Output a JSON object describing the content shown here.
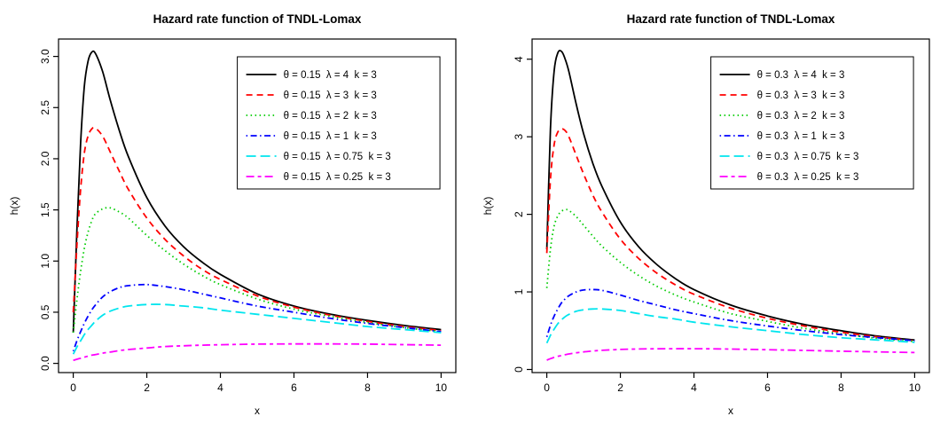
{
  "figure": {
    "background": "#ffffff"
  },
  "chart_data": [
    {
      "type": "line",
      "title": "Hazard rate function of TNDL-Lomax",
      "xlabel": "x",
      "ylabel": "h(x)",
      "xlim": [
        0,
        10
      ],
      "ylim": [
        0,
        3
      ],
      "xticks": [
        0,
        2,
        4,
        6,
        8,
        10
      ],
      "yticks": [
        0,
        0.5,
        1,
        1.5,
        2,
        2.5,
        3
      ],
      "ytick_labels": [
        "0.0",
        "0.5",
        "1.0",
        "1.5",
        "2.0",
        "2.5",
        "3.0"
      ],
      "grid": false,
      "legend_position": "top-right-inside",
      "draw_xlim": [
        -0.4,
        10.4
      ],
      "draw_ylim": [
        -0.09,
        3.17
      ],
      "x": [
        0,
        0.1,
        0.2,
        0.3,
        0.4,
        0.5,
        0.6,
        0.8,
        1,
        1.25,
        1.5,
        2,
        2.5,
        3,
        3.5,
        4,
        5,
        6,
        7,
        8,
        9,
        10
      ],
      "series": [
        {
          "name": "θ = 0.15  λ = 4  k = 3",
          "color": "#000000",
          "line_style": "solid",
          "values": [
            0.3,
            1.3,
            2.15,
            2.7,
            2.95,
            3.04,
            3.03,
            2.85,
            2.58,
            2.28,
            2.02,
            1.62,
            1.34,
            1.14,
            0.99,
            0.87,
            0.68,
            0.56,
            0.48,
            0.42,
            0.37,
            0.33
          ]
        },
        {
          "name": "θ = 0.15  λ = 3  k = 3",
          "color": "#ff0000",
          "line_style": "dashed",
          "values": [
            0.5,
            1.15,
            1.7,
            2.05,
            2.22,
            2.29,
            2.3,
            2.22,
            2.07,
            1.88,
            1.7,
            1.42,
            1.21,
            1.05,
            0.92,
            0.82,
            0.66,
            0.55,
            0.47,
            0.41,
            0.36,
            0.32
          ]
        },
        {
          "name": "θ = 0.15  λ = 2  k = 3",
          "color": "#00cc00",
          "line_style": "dotted",
          "values": [
            0.3,
            0.62,
            0.9,
            1.12,
            1.28,
            1.39,
            1.46,
            1.51,
            1.52,
            1.48,
            1.42,
            1.25,
            1.1,
            0.97,
            0.86,
            0.77,
            0.63,
            0.53,
            0.46,
            0.4,
            0.35,
            0.31
          ]
        },
        {
          "name": "θ = 0.15  λ = 1  k = 3",
          "color": "#0000ff",
          "line_style": "dotdash",
          "values": [
            0.12,
            0.22,
            0.31,
            0.39,
            0.46,
            0.52,
            0.57,
            0.65,
            0.7,
            0.74,
            0.76,
            0.77,
            0.75,
            0.72,
            0.68,
            0.64,
            0.56,
            0.5,
            0.44,
            0.39,
            0.35,
            0.31
          ]
        },
        {
          "name": "θ = 0.15  λ = 0.75  k = 3",
          "color": "#00e5ee",
          "line_style": "longdash",
          "values": [
            0.09,
            0.16,
            0.22,
            0.28,
            0.33,
            0.37,
            0.41,
            0.47,
            0.51,
            0.54,
            0.56,
            0.575,
            0.575,
            0.56,
            0.545,
            0.52,
            0.48,
            0.44,
            0.4,
            0.36,
            0.33,
            0.3
          ]
        },
        {
          "name": "θ = 0.15  λ = 0.25  k = 3",
          "color": "#ff00ff",
          "line_style": "twodash",
          "values": [
            0.03,
            0.04,
            0.05,
            0.06,
            0.07,
            0.08,
            0.085,
            0.1,
            0.11,
            0.125,
            0.135,
            0.15,
            0.165,
            0.172,
            0.178,
            0.182,
            0.188,
            0.19,
            0.19,
            0.188,
            0.183,
            0.178
          ]
        }
      ]
    },
    {
      "type": "line",
      "title": "Hazard rate function of TNDL-Lomax",
      "xlabel": "x",
      "ylabel": "h(x)",
      "xlim": [
        0,
        10
      ],
      "ylim": [
        0,
        4
      ],
      "xticks": [
        0,
        2,
        4,
        6,
        8,
        10
      ],
      "yticks": [
        0,
        1,
        2,
        3,
        4
      ],
      "ytick_labels": [
        "0",
        "1",
        "2",
        "3",
        "4"
      ],
      "grid": false,
      "legend_position": "top-right-inside",
      "draw_xlim": [
        -0.4,
        10.4
      ],
      "draw_ylim": [
        -0.04,
        4.26
      ],
      "x": [
        0,
        0.1,
        0.2,
        0.3,
        0.4,
        0.5,
        0.6,
        0.8,
        1,
        1.25,
        1.5,
        2,
        2.5,
        3,
        3.5,
        4,
        5,
        6,
        7,
        8,
        9,
        10
      ],
      "series": [
        {
          "name": "θ = 0.3  λ = 4  k = 3",
          "color": "#000000",
          "line_style": "solid",
          "values": [
            1.55,
            3.1,
            3.85,
            4.08,
            4.1,
            4.0,
            3.84,
            3.42,
            3.04,
            2.66,
            2.36,
            1.9,
            1.58,
            1.35,
            1.17,
            1.03,
            0.83,
            0.69,
            0.58,
            0.5,
            0.43,
            0.38
          ]
        },
        {
          "name": "θ = 0.3  λ = 3  k = 3",
          "color": "#ff0000",
          "line_style": "dashed",
          "values": [
            1.5,
            2.45,
            2.9,
            3.06,
            3.1,
            3.08,
            3.0,
            2.76,
            2.52,
            2.25,
            2.03,
            1.68,
            1.43,
            1.24,
            1.09,
            0.97,
            0.79,
            0.66,
            0.56,
            0.48,
            0.42,
            0.37
          ]
        },
        {
          "name": "θ = 0.3  λ = 2  k = 3",
          "color": "#00cc00",
          "line_style": "dotted",
          "values": [
            1.05,
            1.55,
            1.85,
            1.98,
            2.04,
            2.06,
            2.05,
            1.97,
            1.86,
            1.72,
            1.59,
            1.38,
            1.21,
            1.07,
            0.96,
            0.87,
            0.72,
            0.62,
            0.53,
            0.46,
            0.4,
            0.36
          ]
        },
        {
          "name": "θ = 0.3  λ = 1  k = 3",
          "color": "#0000ff",
          "line_style": "dotdash",
          "values": [
            0.42,
            0.57,
            0.69,
            0.78,
            0.86,
            0.91,
            0.95,
            1.0,
            1.025,
            1.03,
            1.02,
            0.96,
            0.89,
            0.83,
            0.77,
            0.72,
            0.63,
            0.56,
            0.5,
            0.45,
            0.41,
            0.37
          ]
        },
        {
          "name": "θ = 0.3  λ = 0.75  k = 3",
          "color": "#00e5ee",
          "line_style": "longdash",
          "values": [
            0.34,
            0.44,
            0.52,
            0.59,
            0.64,
            0.68,
            0.71,
            0.75,
            0.77,
            0.78,
            0.78,
            0.76,
            0.72,
            0.68,
            0.65,
            0.61,
            0.55,
            0.5,
            0.45,
            0.41,
            0.38,
            0.35
          ]
        },
        {
          "name": "θ = 0.3  λ = 0.25  k = 3",
          "color": "#ff00ff",
          "line_style": "twodash",
          "values": [
            0.12,
            0.14,
            0.155,
            0.17,
            0.18,
            0.19,
            0.2,
            0.215,
            0.227,
            0.238,
            0.247,
            0.258,
            0.264,
            0.267,
            0.268,
            0.268,
            0.263,
            0.255,
            0.246,
            0.236,
            0.227,
            0.218
          ]
        }
      ]
    }
  ]
}
